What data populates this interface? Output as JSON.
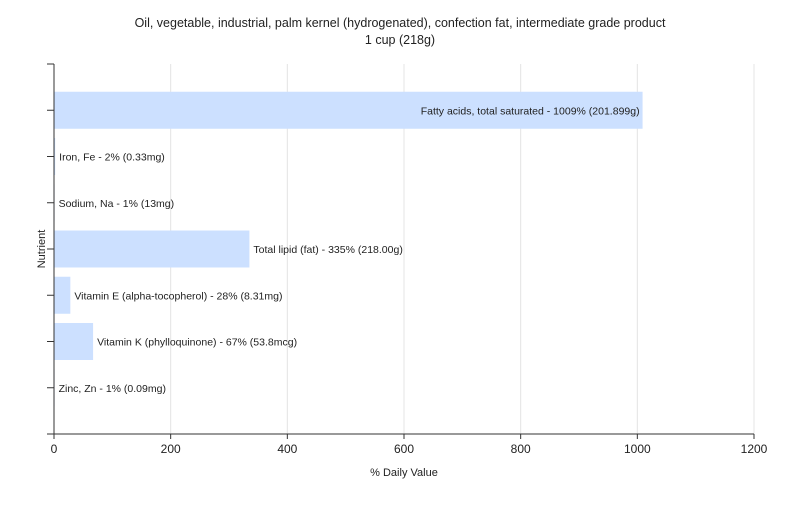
{
  "chart_data": {
    "type": "bar",
    "orientation": "horizontal",
    "title": "Oil, vegetable, industrial, palm kernel (hydrogenated), confection fat, intermediate grade product",
    "subtitle": "1 cup (218g)",
    "xlabel": "% Daily Value",
    "ylabel": "Nutrient",
    "xlim": [
      0,
      1200
    ],
    "xticks": [
      "0",
      "200",
      "400",
      "600",
      "800",
      "1000",
      "1200"
    ],
    "grid": true,
    "bar_color": "#cce0ff",
    "categories": [
      "Fatty acids, total saturated",
      "Iron, Fe",
      "Sodium, Na",
      "Total lipid (fat)",
      "Vitamin E (alpha-tocopherol)",
      "Vitamin K (phylloquinone)",
      "Zinc, Zn"
    ],
    "values": [
      1009,
      2,
      1,
      335,
      28,
      67,
      1
    ],
    "labels": [
      "Fatty acids, total saturated - 1009% (201.899g)",
      "Iron, Fe - 2% (0.33mg)",
      "Sodium, Na - 1% (13mg)",
      "Total lipid (fat) - 335% (218.00g)",
      "Vitamin E (alpha-tocopherol) - 28% (8.31mg)",
      "Vitamin K (phylloquinone) - 67% (53.8mcg)",
      "Zinc, Zn - 1% (0.09mg)"
    ]
  }
}
